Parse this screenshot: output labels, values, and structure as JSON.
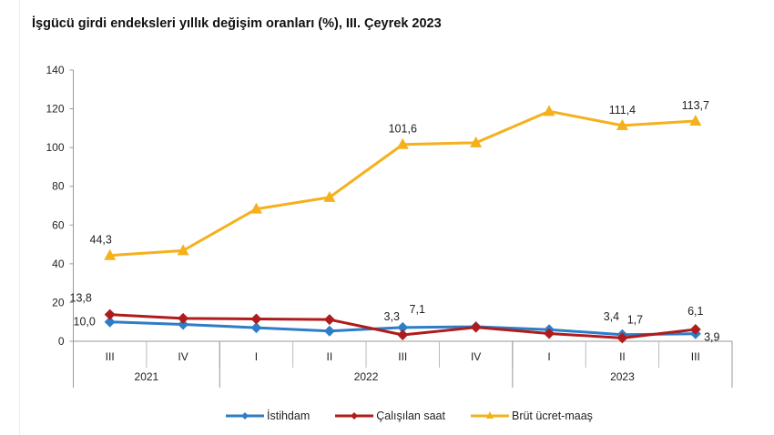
{
  "chart_data": {
    "type": "line",
    "title": "İşgücü girdi endeksleri yıllık değişim oranları (%), III. Çeyrek 2023",
    "quarters": [
      "III",
      "IV",
      "I",
      "II",
      "III",
      "IV",
      "I",
      "II",
      "III"
    ],
    "years": [
      {
        "label": "2021",
        "span": 2
      },
      {
        "label": "2022",
        "span": 4
      },
      {
        "label": "2023",
        "span": 3
      }
    ],
    "ylim": [
      0,
      140
    ],
    "yticks": [
      0,
      20,
      40,
      60,
      80,
      100,
      120,
      140
    ],
    "grid": false,
    "legend_placement": "bottom",
    "series": [
      {
        "name": "İstihdam",
        "color": "#2e7dc7",
        "marker": "diamond",
        "values": [
          10.0,
          8.7,
          7.0,
          5.3,
          7.1,
          7.5,
          6.0,
          3.4,
          3.9
        ],
        "labels": [
          "10,0",
          null,
          null,
          null,
          "7,1",
          null,
          null,
          "3,4",
          "3,9"
        ]
      },
      {
        "name": "Çalışılan saat",
        "color": "#b01c1c",
        "marker": "diamond",
        "values": [
          13.8,
          11.8,
          11.5,
          11.2,
          3.3,
          7.2,
          4.0,
          1.7,
          6.1
        ],
        "labels": [
          "13,8",
          null,
          null,
          null,
          "3,3",
          null,
          null,
          "1,7",
          "6,1"
        ]
      },
      {
        "name": "Brüt ücret-maaş",
        "color": "#f5b01c",
        "marker": "triangle",
        "values": [
          44.3,
          46.8,
          68.3,
          74.3,
          101.6,
          102.5,
          118.7,
          111.4,
          113.7
        ],
        "labels": [
          "44,3",
          null,
          null,
          null,
          "101,6",
          null,
          null,
          "111,4",
          "113,7"
        ]
      }
    ]
  }
}
